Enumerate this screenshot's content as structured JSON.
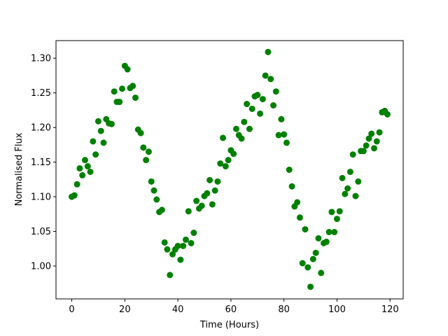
{
  "chart_data": {
    "type": "scatter",
    "xlabel": "Time (Hours)",
    "ylabel": "Normalised Flux",
    "color": "#008000",
    "x": [
      0,
      1,
      2,
      3,
      4,
      5,
      6,
      7,
      8,
      9,
      10,
      11,
      12,
      13,
      14,
      15,
      16,
      17,
      18,
      19,
      20,
      21,
      22,
      23,
      24,
      25,
      26,
      27,
      28,
      29,
      30,
      31,
      32,
      33,
      34,
      35,
      36,
      37,
      38,
      39,
      40,
      41,
      42,
      43,
      44,
      45,
      46,
      47,
      48,
      49,
      50,
      51,
      52,
      53,
      54,
      55,
      56,
      57,
      58,
      59,
      60,
      61,
      62,
      63,
      64,
      65,
      66,
      67,
      68,
      69,
      70,
      71,
      72,
      73,
      74,
      75,
      76,
      77,
      78,
      79,
      80,
      81,
      82,
      83,
      84,
      85,
      86,
      87,
      88,
      89,
      90,
      91,
      92,
      93,
      94,
      95,
      96,
      97,
      98,
      99,
      100,
      101,
      102,
      103,
      104,
      105,
      106,
      107,
      108,
      109,
      110,
      111,
      112,
      113,
      114,
      115,
      116,
      117,
      118,
      119
    ],
    "values": [
      1.1,
      1.102,
      1.118,
      1.141,
      1.131,
      1.153,
      1.144,
      1.136,
      1.18,
      1.161,
      1.209,
      1.195,
      1.178,
      1.212,
      1.206,
      1.205,
      1.252,
      1.237,
      1.237,
      1.256,
      1.289,
      1.284,
      1.257,
      1.26,
      1.243,
      1.197,
      1.192,
      1.171,
      1.153,
      1.165,
      1.122,
      1.109,
      1.096,
      1.078,
      1.081,
      1.034,
      1.024,
      0.987,
      1.017,
      1.024,
      1.029,
      1.009,
      1.029,
      1.038,
      1.079,
      1.033,
      1.048,
      1.094,
      1.083,
      1.087,
      1.101,
      1.105,
      1.124,
      1.089,
      1.109,
      1.122,
      1.148,
      1.185,
      1.144,
      1.153,
      1.167,
      1.162,
      1.198,
      1.189,
      1.184,
      1.208,
      1.234,
      1.198,
      1.227,
      1.245,
      1.247,
      1.22,
      1.241,
      1.275,
      1.309,
      1.27,
      1.232,
      1.252,
      1.189,
      1.212,
      1.19,
      1.178,
      1.139,
      1.115,
      1.086,
      1.092,
      1.07,
      1.004,
      1.053,
      0.998,
      0.97,
      1.01,
      1.019,
      1.04,
      0.99,
      1.033,
      1.035,
      1.049,
      1.078,
      1.049,
      1.068,
      1.079,
      1.127,
      1.104,
      1.112,
      1.136,
      1.161,
      1.101,
      1.122,
      1.166,
      1.166,
      1.174,
      1.184,
      1.191,
      1.17,
      1.18,
      1.193,
      1.222,
      1.224,
      1.219
    ],
    "xlim": [
      -5.95,
      124.95
    ],
    "ylim": [
      0.9525,
      1.3255
    ],
    "xticks": [
      0,
      20,
      40,
      60,
      80,
      100,
      120
    ],
    "yticks": [
      {
        "value": 1.0,
        "label": "1.00"
      },
      1.05,
      {
        "value": 1.1,
        "label": "1.10"
      },
      1.15,
      {
        "value": 1.2,
        "label": "1.20"
      },
      1.25,
      {
        "value": 1.3,
        "label": "1.30"
      }
    ]
  }
}
